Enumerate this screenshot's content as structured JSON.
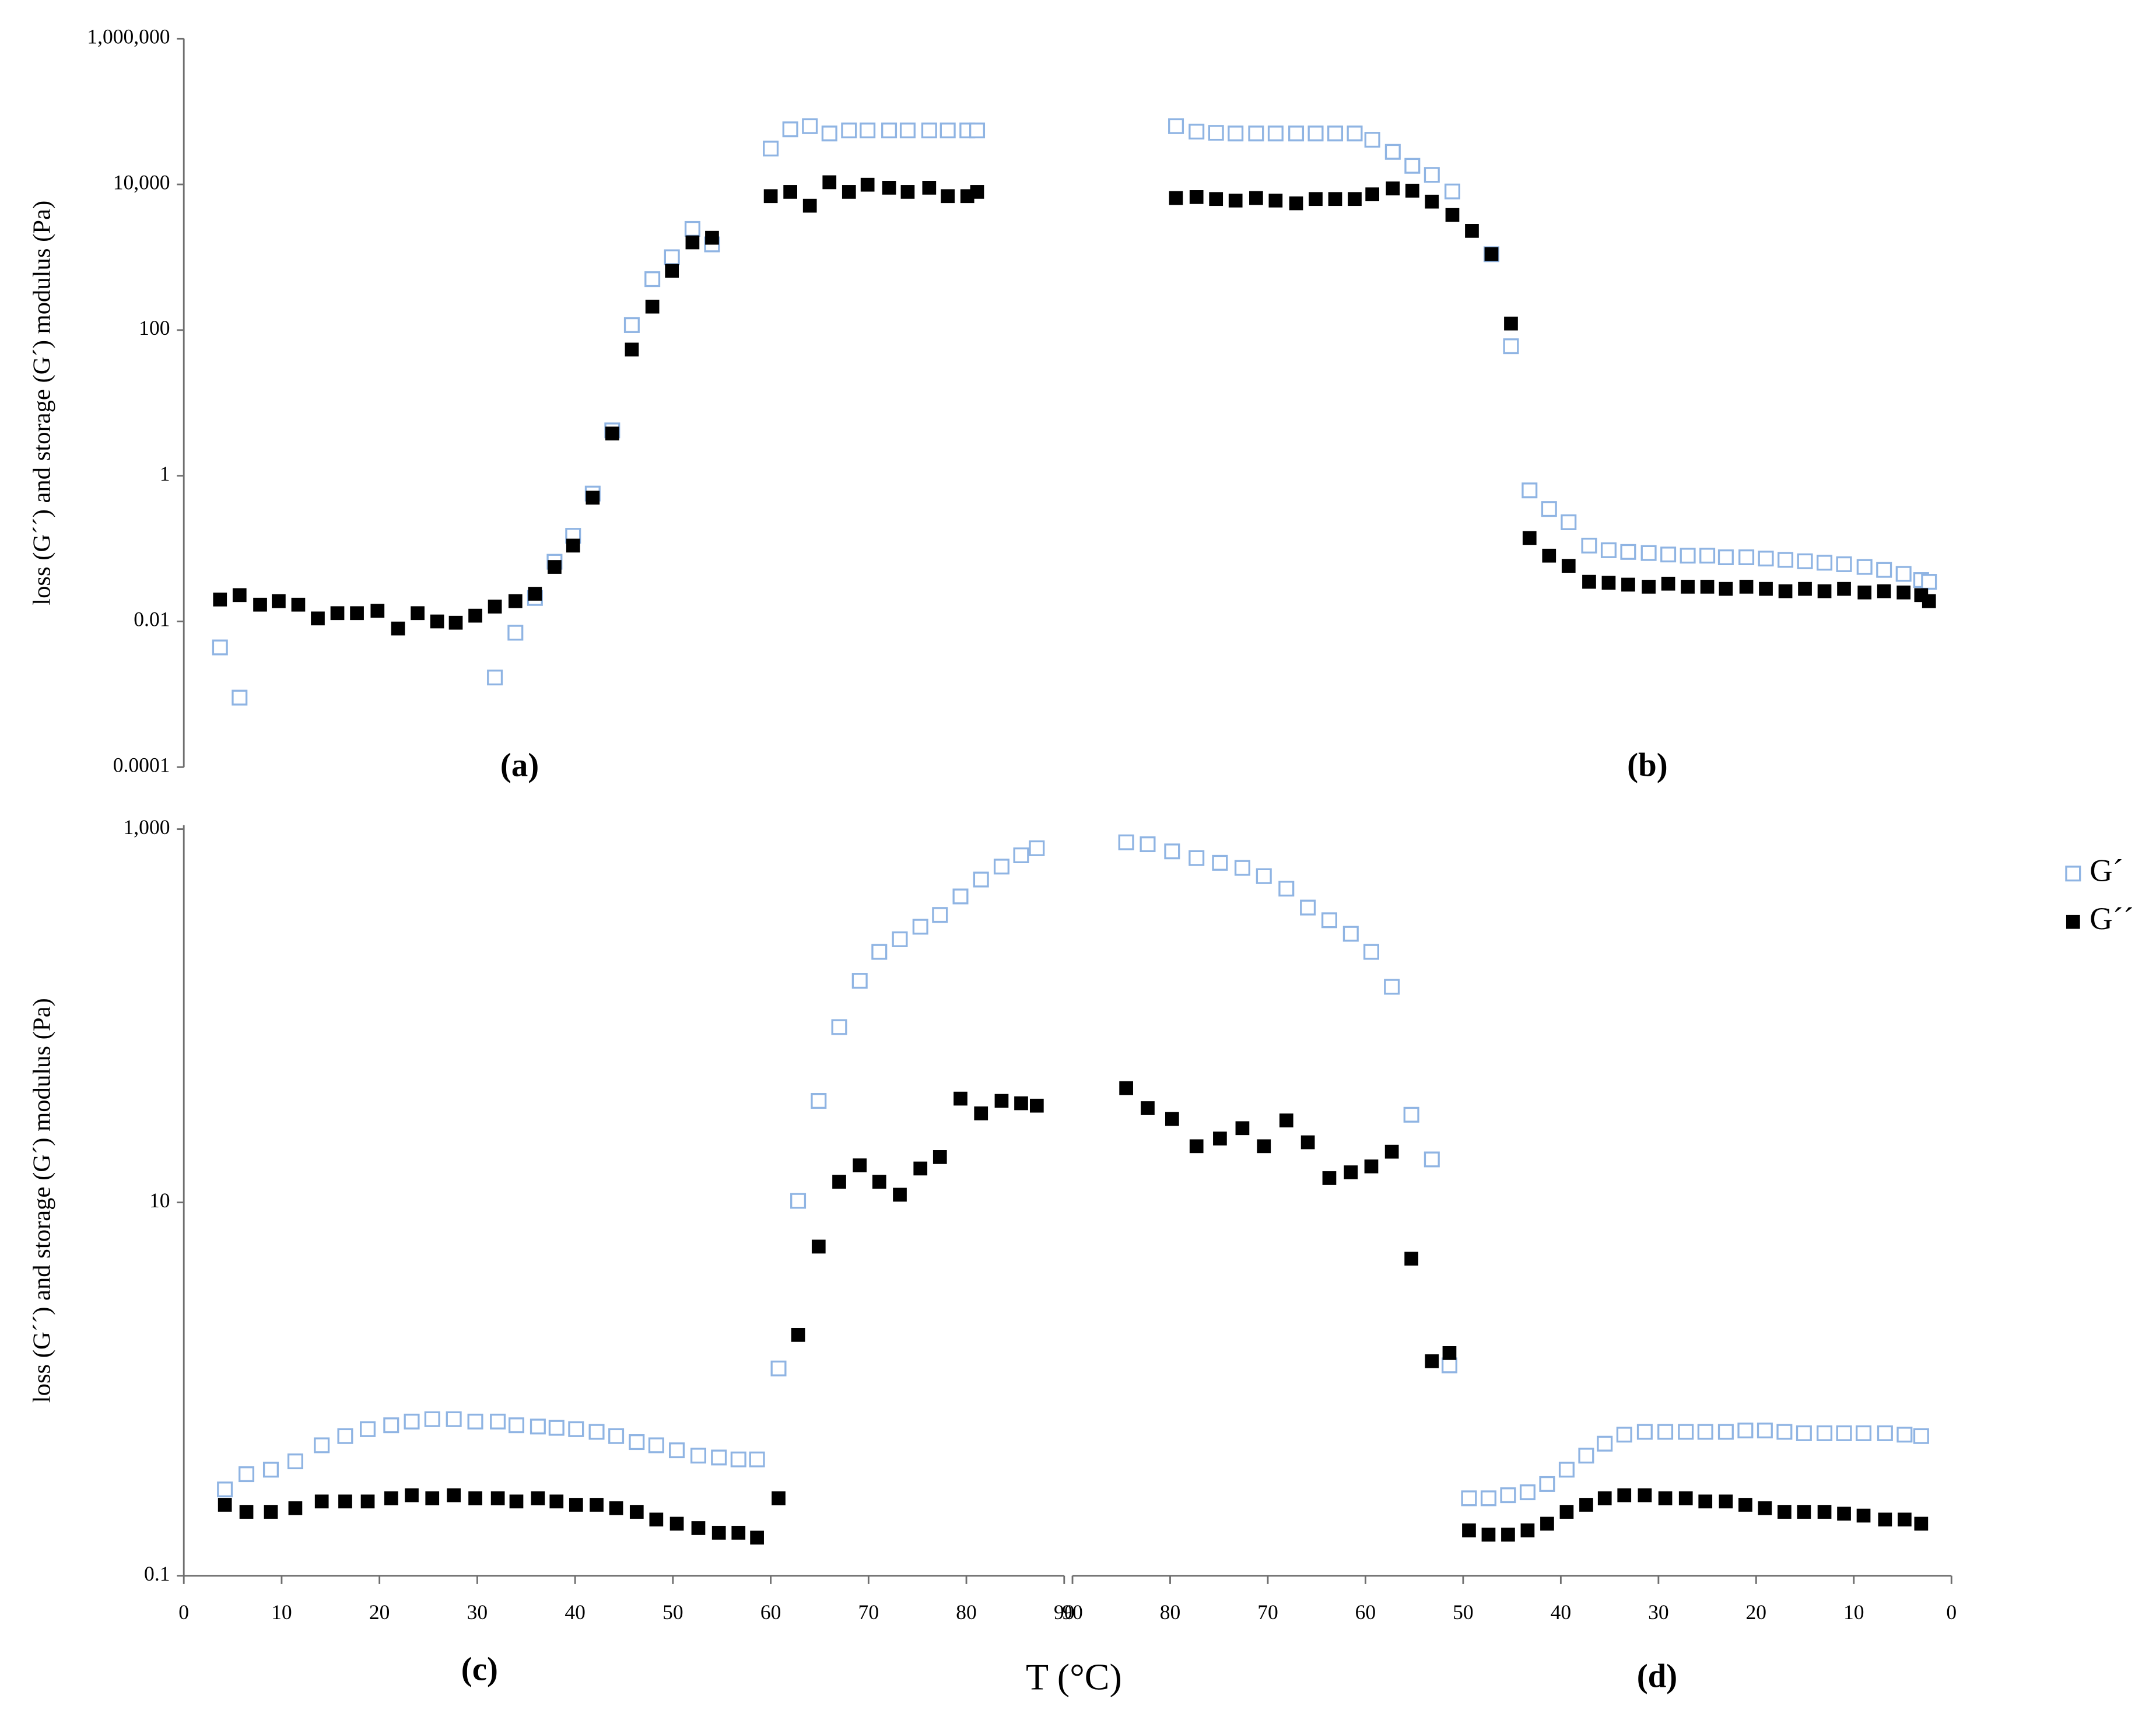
{
  "chart_data": [
    {
      "type": "scatter",
      "title": "(a)",
      "ylabel": "loss (G´´) and storage (G´) modulus (Pa)",
      "log_scale": true,
      "xlim": [
        0,
        90
      ],
      "ylim": [
        0.0001,
        1000000
      ],
      "yticks": [
        0.0001,
        0.01,
        1,
        100,
        {
          "value": 10000,
          "label": "10,000"
        },
        {
          "value": 1000000,
          "label": "1,000,000"
        }
      ],
      "x": [
        3.7,
        5.7,
        7.8,
        9.7,
        11.7,
        13.7,
        15.7,
        17.7,
        19.8,
        21.9,
        23.9,
        25.9,
        27.8,
        29.8,
        31.8,
        33.9,
        35.9,
        37.9,
        39.8,
        41.8,
        43.8,
        45.8,
        47.9,
        49.9,
        52.0,
        54.0,
        60.0,
        62.0,
        64.0,
        66.0,
        68.0,
        69.9,
        72.1,
        74.0,
        76.2,
        78.1,
        80.1,
        81.1
      ],
      "series": [
        {
          "color": "#8fb4e3",
          "marker": "open",
          "values": [
            0.0044,
            0.0009,
            null,
            null,
            null,
            null,
            null,
            null,
            null,
            null,
            null,
            null,
            null,
            null,
            0.0017,
            0.007,
            0.021,
            0.066,
            0.15,
            0.57,
            4.2,
            117,
            500,
            1000,
            2450,
            1500,
            31000,
            57000,
            63000,
            50000,
            55000,
            55000,
            55000,
            55000,
            55000,
            55000,
            55000,
            55000
          ]
        },
        {
          "color": "#000000",
          "marker": "filled",
          "values": [
            0.02,
            0.023,
            0.017,
            0.019,
            0.017,
            0.011,
            0.013,
            0.013,
            0.014,
            0.008,
            0.013,
            0.01,
            0.0096,
            0.012,
            0.016,
            0.019,
            0.024,
            0.056,
            0.11,
            0.5,
            3.8,
            54,
            210,
            650,
            1600,
            1850,
            6900,
            7900,
            5100,
            10700,
            7900,
            9900,
            9000,
            7900,
            9000,
            6900,
            6900,
            7900
          ]
        }
      ]
    },
    {
      "type": "scatter",
      "title": "(b)",
      "log_scale": true,
      "xlim": [
        90,
        0
      ],
      "ylim": [
        0.0001,
        1000000
      ],
      "x": [
        79.4,
        77.3,
        75.3,
        73.3,
        71.2,
        69.2,
        67.1,
        65.1,
        63.1,
        61.1,
        59.3,
        57.2,
        55.2,
        53.2,
        51.1,
        49.1,
        47.1,
        45.1,
        43.2,
        41.2,
        39.2,
        37.1,
        35.1,
        33.1,
        31.0,
        29.0,
        27.0,
        25.0,
        23.1,
        21.0,
        19.0,
        17.0,
        15.0,
        13.0,
        11.0,
        8.9,
        6.9,
        4.9,
        3.1,
        2.3
      ],
      "series": [
        {
          "color": "#8fb4e3",
          "marker": "open",
          "values": [
            63000,
            53000,
            51000,
            50000,
            50000,
            50000,
            50000,
            50000,
            50000,
            50000,
            41000,
            28000,
            18000,
            13500,
            8000,
            null,
            1100,
            60,
            0.63,
            0.35,
            0.23,
            0.11,
            0.095,
            0.09,
            0.087,
            0.083,
            0.08,
            0.08,
            0.076,
            0.076,
            0.073,
            0.07,
            0.067,
            0.064,
            0.061,
            0.056,
            0.051,
            0.045,
            0.037,
            0.035
          ]
        },
        {
          "color": "#000000",
          "marker": "filled",
          "values": [
            6500,
            6700,
            6300,
            6000,
            6500,
            6000,
            5500,
            6300,
            6300,
            6300,
            7300,
            8800,
            8200,
            5800,
            3800,
            2300,
            1100,
            123,
            0.14,
            0.08,
            0.058,
            0.035,
            0.034,
            0.032,
            0.03,
            0.033,
            0.03,
            0.03,
            0.028,
            0.03,
            0.028,
            0.026,
            0.028,
            0.026,
            0.028,
            0.025,
            0.026,
            0.025,
            0.023,
            0.019
          ]
        }
      ]
    },
    {
      "type": "scatter",
      "title": "(c)",
      "ylabel": "loss (G´´) and storage (G´) modulus (Pa)",
      "xlabel": "T (°C)",
      "log_scale": true,
      "xlim": [
        0,
        90
      ],
      "ylim": [
        0.1,
        1050
      ],
      "xticks": [
        0,
        10,
        20,
        30,
        40,
        50,
        60,
        70,
        80,
        90
      ],
      "yticks": [
        0.1,
        10,
        {
          "value": 1000,
          "label": "1,000"
        }
      ],
      "x": [
        4.2,
        6.4,
        8.9,
        11.4,
        14.1,
        16.5,
        18.8,
        21.2,
        23.3,
        25.4,
        27.6,
        29.8,
        32.1,
        34.0,
        36.2,
        38.1,
        40.1,
        42.2,
        44.2,
        46.3,
        48.3,
        50.4,
        52.6,
        54.7,
        56.7,
        58.6,
        60.8,
        62.8,
        64.9,
        67.0,
        69.1,
        71.1,
        73.2,
        75.3,
        77.3,
        79.4,
        81.5,
        83.6,
        85.6,
        87.2
      ],
      "series": [
        {
          "color": "#8fb4e3",
          "marker": "open",
          "values": [
            0.29,
            0.35,
            0.37,
            0.41,
            0.5,
            0.56,
            0.61,
            0.64,
            0.67,
            0.69,
            0.69,
            0.67,
            0.67,
            0.64,
            0.63,
            0.62,
            0.61,
            0.59,
            0.56,
            0.52,
            0.5,
            0.47,
            0.44,
            0.43,
            0.42,
            0.42,
            1.29,
            10.2,
            35,
            87,
            154,
            220,
            257,
            300,
            347,
            436,
            537,
            630,
            724,
            790
          ]
        },
        {
          "color": "#000000",
          "marker": "filled",
          "values": [
            0.24,
            0.22,
            0.22,
            0.23,
            0.25,
            0.25,
            0.25,
            0.26,
            0.27,
            0.26,
            0.27,
            0.26,
            0.26,
            0.25,
            0.26,
            0.25,
            0.24,
            0.24,
            0.23,
            0.22,
            0.2,
            0.19,
            0.18,
            0.17,
            0.17,
            0.16,
            0.26,
            1.95,
            5.8,
            12.9,
            15.8,
            12.9,
            11.0,
            15.2,
            17.5,
            36,
            30,
            35,
            34,
            33
          ]
        }
      ]
    },
    {
      "type": "scatter",
      "title": "(d)",
      "log_scale": true,
      "legend": "right",
      "xlim": [
        90,
        0
      ],
      "ylim": [
        0.1,
        1050
      ],
      "xticks": [
        90,
        80,
        70,
        60,
        50,
        40,
        30,
        20,
        10,
        0
      ],
      "x": [
        84.5,
        82.3,
        79.8,
        77.3,
        74.9,
        72.6,
        70.4,
        68.1,
        65.9,
        63.7,
        61.5,
        59.4,
        57.3,
        55.3,
        53.2,
        51.4,
        49.4,
        47.4,
        45.4,
        43.4,
        41.4,
        39.4,
        37.4,
        35.5,
        33.5,
        31.4,
        29.3,
        27.2,
        25.2,
        23.1,
        21.1,
        19.1,
        17.1,
        15.1,
        13.0,
        11.0,
        9.0,
        6.8,
        4.8,
        3.1
      ],
      "series": [
        {
          "name": "G´",
          "color": "#8fb4e3",
          "marker": "open",
          "values": [
            850,
            830,
            760,
            700,
            660,
            620,
            560,
            480,
            380,
            325,
            275,
            220,
            143,
            29.5,
            17,
            1.34,
            0.26,
            0.26,
            0.27,
            0.28,
            0.31,
            0.37,
            0.44,
            0.51,
            0.57,
            0.59,
            0.59,
            0.59,
            0.59,
            0.59,
            0.6,
            0.6,
            0.59,
            0.58,
            0.58,
            0.58,
            0.58,
            0.58,
            0.57,
            0.56
          ]
        },
        {
          "name": "G´´",
          "color": "#000000",
          "marker": "filled",
          "values": [
            41,
            32,
            28,
            20,
            22,
            25,
            20,
            27.5,
            21,
            13.5,
            14.5,
            15.6,
            18.7,
            5.0,
            1.41,
            1.56,
            0.175,
            0.166,
            0.166,
            0.175,
            0.19,
            0.22,
            0.24,
            0.26,
            0.27,
            0.27,
            0.26,
            0.26,
            0.25,
            0.25,
            0.24,
            0.23,
            0.22,
            0.22,
            0.22,
            0.215,
            0.21,
            0.2,
            0.2,
            0.19
          ]
        }
      ]
    }
  ]
}
